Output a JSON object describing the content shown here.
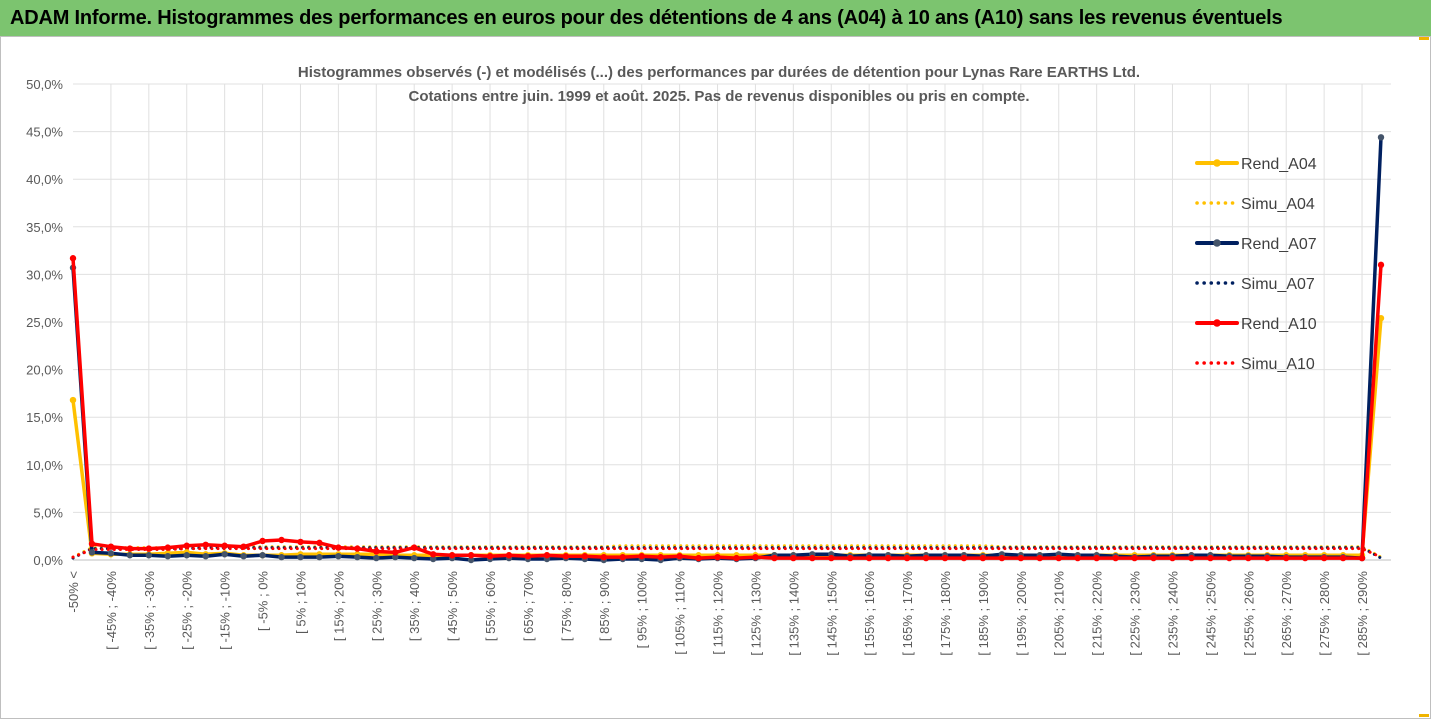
{
  "banner": {
    "title": "ADAM Informe. Histogrammes des performances en euros pour des détentions de 4 ans (A04) à 10 ans (A10) sans les revenus éventuels"
  },
  "chart_data": {
    "type": "line",
    "subtitle_lines": [
      "Histogrammes observés (-) et modélisés (...) des performances par durées de détention pour Lynas Rare EARTHS Ltd.",
      "Cotations entre juin. 1999 et août. 2025. Pas de revenus disponibles ou pris en compte."
    ],
    "ylim": [
      0,
      50
    ],
    "y_ticks": [
      "0,0%",
      "5,0%",
      "10,0%",
      "15,0%",
      "20,0%",
      "25,0%",
      "30,0%",
      "35,0%",
      "40,0%",
      "45,0%",
      "50,0%"
    ],
    "x_tick_labels": [
      "-50% <",
      "[ -45% ; -40%",
      "[ -35% ; -30%",
      "[ -25% ; -20%",
      "[ -15% ; -10%",
      "[ -5% ; 0%",
      "[ 5% ; 10%",
      "[ 15% ; 20%",
      "[ 25% ; 30%",
      "[ 35% ; 40%",
      "[ 45% ; 50%",
      "[ 55% ; 60%",
      "[ 65% ; 70%",
      "[ 75% ; 80%",
      "[ 85% ; 90%",
      "[ 95% ; 100%",
      "[ 105% ; 110%",
      "[ 115% ; 120%",
      "[ 125% ; 130%",
      "[ 135% ; 140%",
      "[ 145% ; 150%",
      "[ 155% ; 160%",
      "[ 165% ; 170%",
      "[ 175% ; 180%",
      "[ 185% ; 190%",
      "[ 195% ; 200%",
      "[ 205% ; 210%",
      "[ 215% ; 220%",
      "[ 225% ; 230%",
      "[ 235% ; 240%",
      "[ 245% ; 250%",
      "[ 255% ; 260%",
      "[ 265% ; 270%",
      "[ 275% ; 280%",
      "[ 285% ; 290%"
    ],
    "n_categories": 70,
    "grid": "vertical",
    "legend_position": "right",
    "series": [
      {
        "name": "Rend_A04",
        "style": "solid",
        "color": "#ffc000",
        "values": [
          16.8,
          0.7,
          0.6,
          0.6,
          0.6,
          0.7,
          0.8,
          0.6,
          0.7,
          0.5,
          0.5,
          0.5,
          0.6,
          0.6,
          0.6,
          0.6,
          0.6,
          0.5,
          0.5,
          0.5,
          0.5,
          0.5,
          0.5,
          0.5,
          0.5,
          0.5,
          0.5,
          0.5,
          0.5,
          0.5,
          0.5,
          0.5,
          0.5,
          0.5,
          0.5,
          0.5,
          0.5,
          0.5,
          0.5,
          0.5,
          0.5,
          0.5,
          0.5,
          0.5,
          0.5,
          0.5,
          0.5,
          0.5,
          0.5,
          0.5,
          0.5,
          0.5,
          0.5,
          0.5,
          0.5,
          0.5,
          0.5,
          0.5,
          0.5,
          0.5,
          0.5,
          0.5,
          0.5,
          0.5,
          0.5,
          0.5,
          0.5,
          0.5,
          0.5,
          25.4
        ]
      },
      {
        "name": "Simu_A04",
        "style": "dotted",
        "color": "#ffc000",
        "values": [
          0.3,
          1.3,
          1.3,
          1.3,
          1.3,
          1.3,
          1.4,
          1.4,
          1.4,
          1.4,
          1.4,
          1.4,
          1.4,
          1.4,
          1.4,
          1.4,
          1.4,
          1.4,
          1.4,
          1.4,
          1.4,
          1.4,
          1.4,
          1.4,
          1.4,
          1.4,
          1.4,
          1.4,
          1.4,
          1.5,
          1.5,
          1.5,
          1.5,
          1.5,
          1.5,
          1.5,
          1.5,
          1.5,
          1.5,
          1.5,
          1.5,
          1.5,
          1.5,
          1.5,
          1.5,
          1.5,
          1.5,
          1.5,
          1.5,
          1.4,
          1.4,
          1.4,
          1.4,
          1.4,
          1.4,
          1.4,
          1.4,
          1.4,
          1.4,
          1.4,
          1.4,
          1.4,
          1.4,
          1.4,
          1.4,
          1.4,
          1.4,
          1.4,
          1.4,
          0.3
        ]
      },
      {
        "name": "Rend_A07",
        "style": "solid",
        "color": "#002060",
        "values": [
          30.7,
          0.8,
          0.7,
          0.5,
          0.5,
          0.4,
          0.5,
          0.4,
          0.6,
          0.4,
          0.5,
          0.3,
          0.3,
          0.3,
          0.4,
          0.3,
          0.2,
          0.3,
          0.2,
          0.1,
          0.2,
          0.0,
          0.1,
          0.2,
          0.1,
          0.1,
          0.2,
          0.1,
          0.0,
          0.1,
          0.1,
          0.0,
          0.2,
          0.1,
          0.2,
          0.1,
          0.2,
          0.5,
          0.5,
          0.6,
          0.6,
          0.4,
          0.5,
          0.5,
          0.4,
          0.5,
          0.5,
          0.5,
          0.4,
          0.6,
          0.5,
          0.5,
          0.6,
          0.5,
          0.5,
          0.4,
          0.3,
          0.4,
          0.4,
          0.5,
          0.5,
          0.4,
          0.4,
          0.4,
          0.3,
          0.3,
          0.3,
          0.3,
          0.2,
          44.4
        ]
      },
      {
        "name": "Simu_A07",
        "style": "dotted",
        "color": "#002060",
        "values": [
          0.2,
          1.2,
          1.2,
          1.2,
          1.2,
          1.2,
          1.2,
          1.3,
          1.3,
          1.3,
          1.3,
          1.3,
          1.3,
          1.3,
          1.3,
          1.3,
          1.3,
          1.3,
          1.3,
          1.3,
          1.3,
          1.3,
          1.3,
          1.3,
          1.3,
          1.3,
          1.3,
          1.3,
          1.3,
          1.3,
          1.3,
          1.3,
          1.3,
          1.3,
          1.3,
          1.3,
          1.3,
          1.3,
          1.3,
          1.3,
          1.3,
          1.3,
          1.3,
          1.3,
          1.3,
          1.3,
          1.3,
          1.3,
          1.3,
          1.3,
          1.3,
          1.3,
          1.3,
          1.3,
          1.3,
          1.3,
          1.3,
          1.3,
          1.3,
          1.3,
          1.3,
          1.3,
          1.3,
          1.3,
          1.3,
          1.3,
          1.3,
          1.3,
          1.3,
          0.2
        ]
      },
      {
        "name": "Rend_A10",
        "style": "solid",
        "color": "#ff0000",
        "values": [
          31.7,
          1.7,
          1.4,
          1.2,
          1.2,
          1.3,
          1.5,
          1.6,
          1.5,
          1.4,
          2.0,
          2.1,
          1.9,
          1.8,
          1.3,
          1.2,
          0.9,
          0.8,
          1.3,
          0.6,
          0.5,
          0.5,
          0.4,
          0.5,
          0.4,
          0.5,
          0.4,
          0.4,
          0.3,
          0.3,
          0.4,
          0.3,
          0.4,
          0.2,
          0.3,
          0.2,
          0.3,
          0.2,
          0.2,
          0.2,
          0.2,
          0.2,
          0.2,
          0.2,
          0.2,
          0.2,
          0.2,
          0.2,
          0.2,
          0.2,
          0.2,
          0.2,
          0.2,
          0.2,
          0.2,
          0.2,
          0.2,
          0.2,
          0.2,
          0.2,
          0.2,
          0.2,
          0.2,
          0.2,
          0.2,
          0.2,
          0.2,
          0.2,
          0.2,
          31.0
        ]
      },
      {
        "name": "Simu_A10",
        "style": "dotted",
        "color": "#ff0000",
        "values": [
          0.3,
          1.1,
          1.1,
          1.1,
          1.1,
          1.1,
          1.2,
          1.2,
          1.2,
          1.2,
          1.2,
          1.2,
          1.2,
          1.2,
          1.2,
          1.2,
          1.2,
          1.2,
          1.2,
          1.2,
          1.2,
          1.2,
          1.2,
          1.2,
          1.2,
          1.2,
          1.2,
          1.2,
          1.2,
          1.2,
          1.2,
          1.2,
          1.2,
          1.2,
          1.2,
          1.2,
          1.2,
          1.2,
          1.2,
          1.2,
          1.2,
          1.2,
          1.2,
          1.2,
          1.2,
          1.2,
          1.2,
          1.2,
          1.2,
          1.2,
          1.2,
          1.2,
          1.2,
          1.2,
          1.2,
          1.2,
          1.2,
          1.2,
          1.2,
          1.2,
          1.2,
          1.2,
          1.2,
          1.2,
          1.2,
          1.2,
          1.2,
          1.2,
          1.2,
          0.3
        ]
      }
    ]
  }
}
